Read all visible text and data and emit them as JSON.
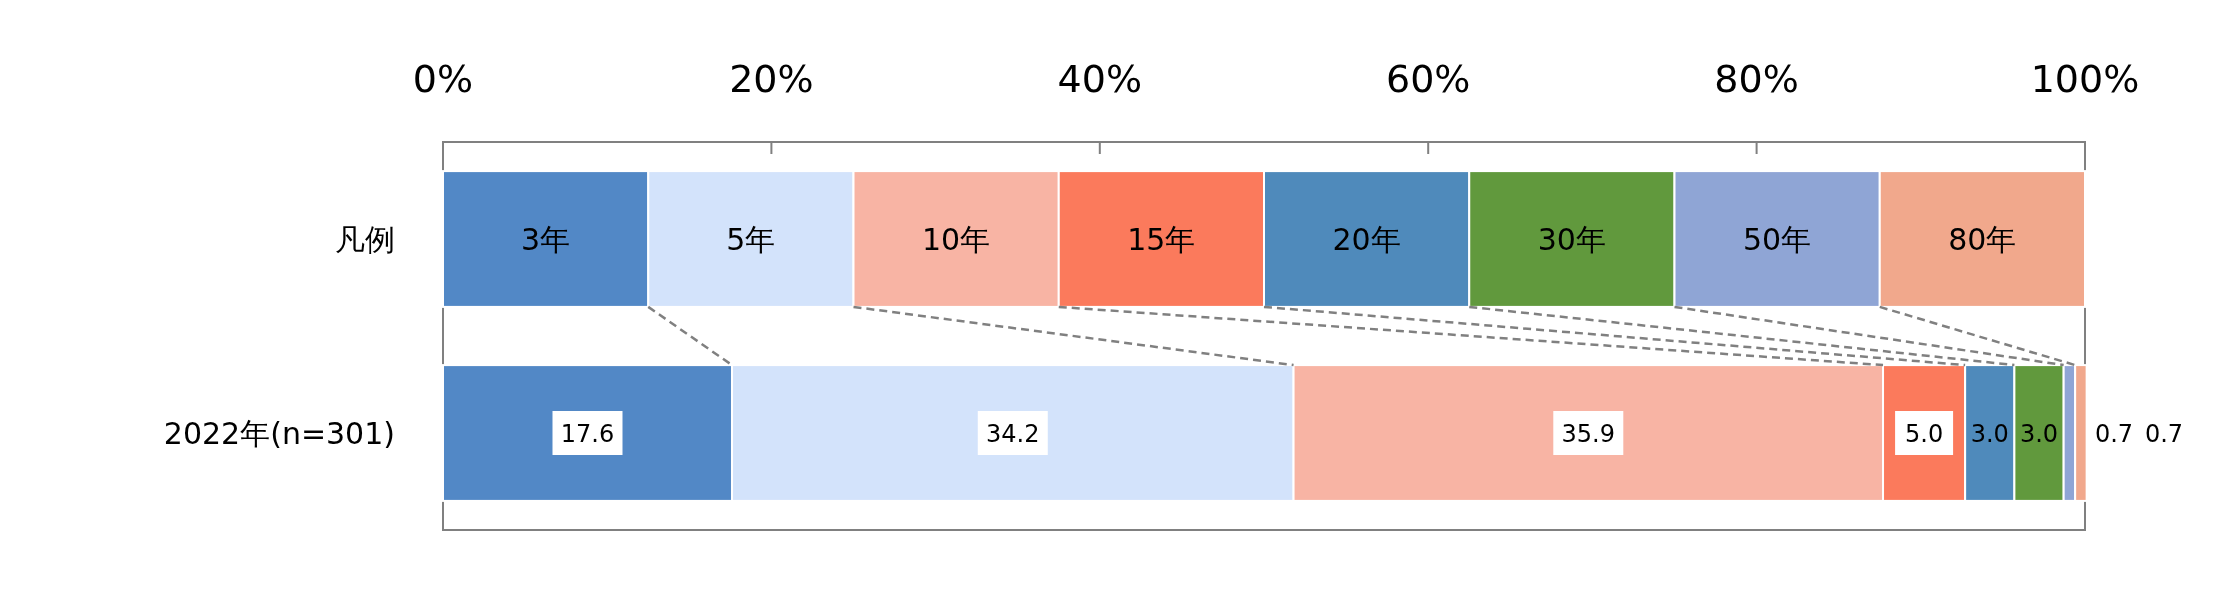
{
  "chart_data": {
    "type": "bar",
    "orientation": "horizontal",
    "stacked": true,
    "categories": [
      "凡例",
      "2022年(n=301)"
    ],
    "xlim": [
      0,
      100
    ],
    "xticks": [
      {
        "value": 0,
        "label": "0%"
      },
      {
        "value": 20,
        "label": "20%"
      },
      {
        "value": 40,
        "label": "40%"
      },
      {
        "value": 60,
        "label": "60%"
      },
      {
        "value": 80,
        "label": "80%"
      },
      {
        "value": 100,
        "label": "100%"
      }
    ],
    "grid": false,
    "legend": false,
    "series": [
      {
        "name": "3年",
        "color": "#5288c6",
        "values": [
          12.5,
          17.6
        ],
        "value_labels": [
          null,
          "17.6"
        ]
      },
      {
        "name": "5年",
        "color": "#d3e3fb",
        "values": [
          12.5,
          34.2
        ],
        "value_labels": [
          null,
          "34.2"
        ]
      },
      {
        "name": "10年",
        "color": "#f8b4a4",
        "values": [
          12.5,
          35.9
        ],
        "value_labels": [
          null,
          "35.9"
        ]
      },
      {
        "name": "15年",
        "color": "#fb7a5c",
        "values": [
          12.5,
          5.0
        ],
        "value_labels": [
          null,
          "5.0"
        ]
      },
      {
        "name": "20年",
        "color": "#4f8abb",
        "values": [
          12.5,
          3.0
        ],
        "value_labels": [
          null,
          "3.0"
        ]
      },
      {
        "name": "30年",
        "color": "#61993d",
        "values": [
          12.5,
          3.0
        ],
        "value_labels": [
          null,
          "3.0"
        ]
      },
      {
        "name": "50年",
        "color": "#8fa5d5",
        "values": [
          12.5,
          0.7
        ],
        "value_labels": [
          null,
          "0.7"
        ]
      },
      {
        "name": "80年",
        "color": "#f1a88c",
        "values": [
          12.5,
          0.7
        ],
        "value_labels": [
          null,
          "0.7"
        ]
      }
    ]
  }
}
